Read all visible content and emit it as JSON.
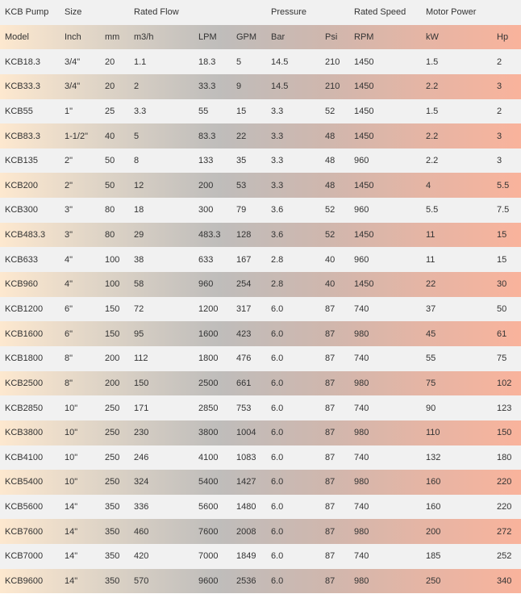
{
  "group_headers": [
    "KCB Pump",
    "Size",
    "",
    "Rated Flow",
    "",
    "",
    "Pressure",
    "",
    "Rated Speed",
    "Motor Power",
    ""
  ],
  "columns": [
    "Model",
    "Inch",
    "mm",
    "m3/h",
    "LPM",
    "GPM",
    "Bar",
    "Psi",
    "RPM",
    "kW",
    "Hp"
  ],
  "rows": [
    [
      "KCB18.3",
      "3/4\"",
      "20",
      "1.1",
      "18.3",
      "5",
      "14.5",
      "210",
      "1450",
      "1.5",
      "2"
    ],
    [
      "KCB33.3",
      "3/4\"",
      "20",
      "2",
      "33.3",
      "9",
      "14.5",
      "210",
      "1450",
      "2.2",
      "3"
    ],
    [
      "KCB55",
      "1\"",
      "25",
      "3.3",
      "55",
      "15",
      "3.3",
      "52",
      "1450",
      "1.5",
      "2"
    ],
    [
      "KCB83.3",
      "1-1/2\"",
      "40",
      "5",
      "83.3",
      "22",
      "3.3",
      "48",
      "1450",
      "2.2",
      "3"
    ],
    [
      "KCB135",
      "2\"",
      "50",
      "8",
      "133",
      "35",
      "3.3",
      "48",
      "960",
      "2.2",
      "3"
    ],
    [
      "KCB200",
      "2\"",
      "50",
      "12",
      "200",
      "53",
      "3.3",
      "48",
      "1450",
      "4",
      "5.5"
    ],
    [
      "KCB300",
      "3\"",
      "80",
      "18",
      "300",
      "79",
      "3.6",
      "52",
      "960",
      "5.5",
      "7.5"
    ],
    [
      "KCB483.3",
      "3\"",
      "80",
      "29",
      "483.3",
      "128",
      "3.6",
      "52",
      "1450",
      "11",
      "15"
    ],
    [
      "KCB633",
      "4\"",
      "100",
      "38",
      "633",
      "167",
      "2.8",
      "40",
      "960",
      "11",
      "15"
    ],
    [
      "KCB960",
      "4\"",
      "100",
      "58",
      "960",
      "254",
      "2.8",
      "40",
      "1450",
      "22",
      "30"
    ],
    [
      "KCB1200",
      "6\"",
      "150",
      "72",
      "1200",
      "317",
      "6.0",
      "87",
      "740",
      "37",
      "50"
    ],
    [
      "KCB1600",
      "6\"",
      "150",
      "95",
      "1600",
      "423",
      "6.0",
      "87",
      "980",
      "45",
      "61"
    ],
    [
      "KCB1800",
      "8\"",
      "200",
      "112",
      "1800",
      "476",
      "6.0",
      "87",
      "740",
      "55",
      "75"
    ],
    [
      "KCB2500",
      "8\"",
      "200",
      "150",
      "2500",
      "661",
      "6.0",
      "87",
      "980",
      "75",
      "102"
    ],
    [
      "KCB2850",
      "10\"",
      "250",
      "171",
      "2850",
      "753",
      "6.0",
      "87",
      "740",
      "90",
      "123"
    ],
    [
      "KCB3800",
      "10\"",
      "250",
      "230",
      "3800",
      "1004",
      "6.0",
      "87",
      "980",
      "110",
      "150"
    ],
    [
      "KCB4100",
      "10\"",
      "250",
      "246",
      "4100",
      "1083",
      "6.0",
      "87",
      "740",
      "132",
      "180"
    ],
    [
      "KCB5400",
      "10\"",
      "250",
      "324",
      "5400",
      "1427",
      "6.0",
      "87",
      "980",
      "160",
      "220"
    ],
    [
      "KCB5600",
      "14\"",
      "350",
      "336",
      "5600",
      "1480",
      "6.0",
      "87",
      "740",
      "160",
      "220"
    ],
    [
      "KCB7600",
      "14\"",
      "350",
      "460",
      "7600",
      "2008",
      "6.0",
      "87",
      "980",
      "200",
      "272"
    ],
    [
      "KCB7000",
      "14\"",
      "350",
      "420",
      "7000",
      "1849",
      "6.0",
      "87",
      "740",
      "185",
      "252"
    ],
    [
      "KCB9600",
      "14\"",
      "350",
      "570",
      "9600",
      "2536",
      "6.0",
      "87",
      "980",
      "250",
      "340"
    ]
  ]
}
